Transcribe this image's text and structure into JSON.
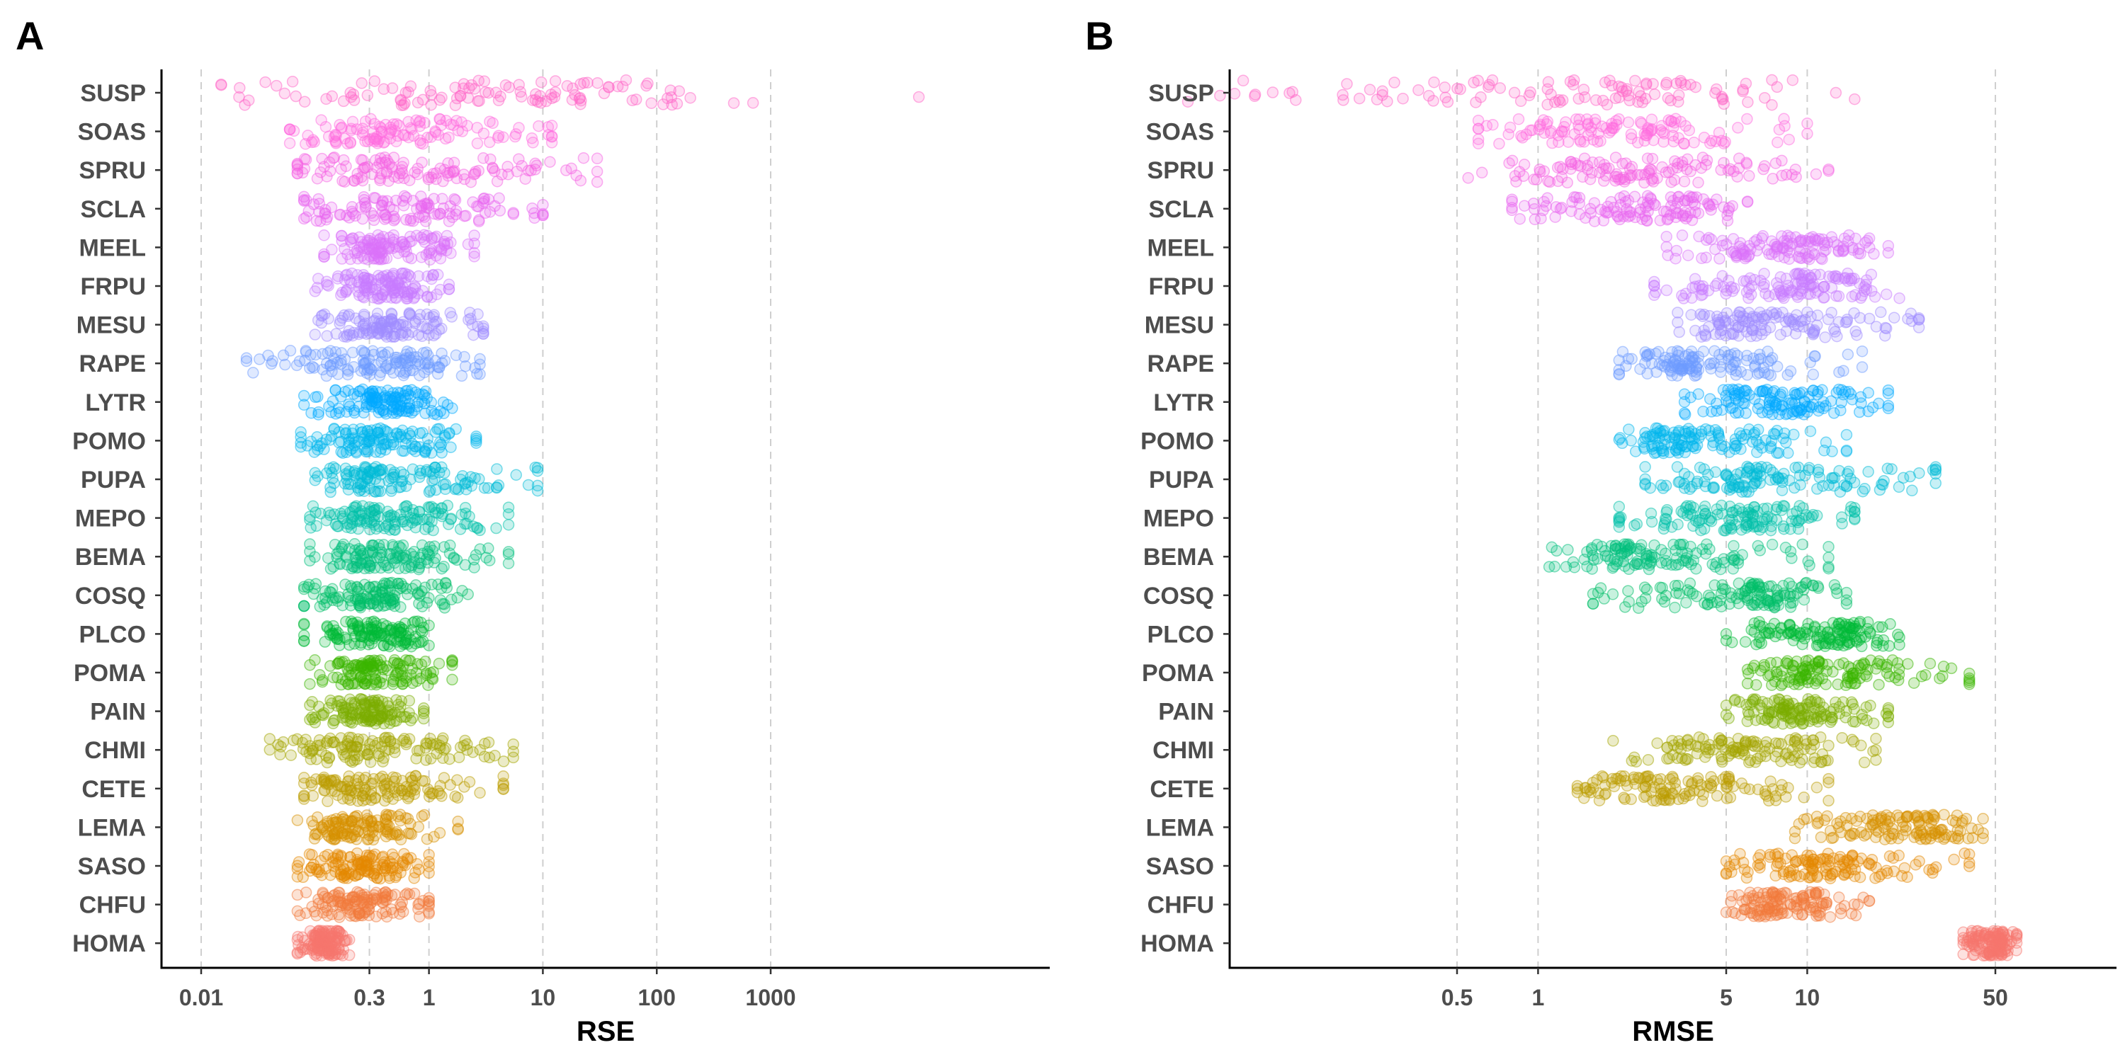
{
  "panels": {
    "A": {
      "label": "A"
    },
    "B": {
      "label": "B"
    }
  },
  "chart_data": [
    {
      "type": "scatter",
      "panel": "A",
      "xlabel": "RSE",
      "ylabel": "",
      "xscale": "log",
      "xlim": [
        0.005,
        300000
      ],
      "xticks": [
        0.01,
        0.3,
        1,
        10,
        100,
        1000
      ],
      "xtick_labels": [
        "0.01",
        "0.3",
        "1",
        "10",
        "100",
        "1000"
      ],
      "grid": "vertical dashed at ticks",
      "legend": "none",
      "categories": [
        "SUSP",
        "SOAS",
        "SPRU",
        "SCLA",
        "MEEL",
        "FRPU",
        "MESU",
        "RAPE",
        "LYTR",
        "POMO",
        "PUPA",
        "MEPO",
        "BEMA",
        "COSQ",
        "PLCO",
        "POMA",
        "PAIN",
        "CHMI",
        "CETE",
        "LEMA",
        "SASO",
        "CHFU",
        "HOMA"
      ],
      "series": [
        {
          "category": "SUSP",
          "color": "#FF66C8",
          "center": 5,
          "spread": [
            0.015,
            700
          ],
          "outliers": [
            20000
          ],
          "n": 110
        },
        {
          "category": "SOAS",
          "color": "#FF6CE0",
          "center": 0.5,
          "spread": [
            0.06,
            12
          ],
          "outliers": [],
          "n": 120
        },
        {
          "category": "SPRU",
          "color": "#F564E3",
          "center": 0.6,
          "spread": [
            0.07,
            30
          ],
          "outliers": [],
          "n": 120
        },
        {
          "category": "SCLA",
          "color": "#EA66F0",
          "center": 0.5,
          "spread": [
            0.08,
            10
          ],
          "outliers": [],
          "n": 120
        },
        {
          "category": "MEEL",
          "color": "#DC71FA",
          "center": 0.4,
          "spread": [
            0.12,
            2.5
          ],
          "outliers": [],
          "n": 130
        },
        {
          "category": "FRPU",
          "color": "#C77CFF",
          "center": 0.4,
          "spread": [
            0.1,
            1.5
          ],
          "outliers": [],
          "n": 130
        },
        {
          "category": "MESU",
          "color": "#9F8CFF",
          "center": 0.4,
          "spread": [
            0.1,
            3
          ],
          "outliers": [],
          "n": 130
        },
        {
          "category": "RAPE",
          "color": "#6E9CFF",
          "center": 0.4,
          "spread": [
            0.025,
            2.8
          ],
          "outliers": [],
          "n": 130
        },
        {
          "category": "LYTR",
          "color": "#00A9FF",
          "center": 0.4,
          "spread": [
            0.08,
            1.6
          ],
          "outliers": [],
          "n": 130
        },
        {
          "category": "POMO",
          "color": "#00B5EE",
          "center": 0.35,
          "spread": [
            0.075,
            2.6
          ],
          "outliers": [],
          "n": 130
        },
        {
          "category": "PUPA",
          "color": "#00BCD8",
          "center": 0.4,
          "spread": [
            0.1,
            9
          ],
          "outliers": [],
          "n": 130
        },
        {
          "category": "MEPO",
          "color": "#00C1AA",
          "center": 0.35,
          "spread": [
            0.09,
            5
          ],
          "outliers": [],
          "n": 130
        },
        {
          "category": "BEMA",
          "color": "#00BF7D",
          "center": 0.35,
          "spread": [
            0.09,
            5
          ],
          "outliers": [],
          "n": 130
        },
        {
          "category": "COSQ",
          "color": "#00BE67",
          "center": 0.35,
          "spread": [
            0.08,
            2.2
          ],
          "outliers": [],
          "n": 130
        },
        {
          "category": "PLCO",
          "color": "#00BA38",
          "center": 0.35,
          "spread": [
            0.08,
            1
          ],
          "outliers": [],
          "n": 130
        },
        {
          "category": "POMA",
          "color": "#39B600",
          "center": 0.3,
          "spread": [
            0.09,
            1.6
          ],
          "outliers": [],
          "n": 130
        },
        {
          "category": "PAIN",
          "color": "#7CAE00",
          "center": 0.3,
          "spread": [
            0.09,
            0.9
          ],
          "outliers": [],
          "n": 130
        },
        {
          "category": "CHMI",
          "color": "#A3A500",
          "center": 0.3,
          "spread": [
            0.04,
            5.5
          ],
          "outliers": [],
          "n": 130
        },
        {
          "category": "CETE",
          "color": "#BB9D00",
          "center": 0.3,
          "spread": [
            0.08,
            4.5
          ],
          "outliers": [],
          "n": 130
        },
        {
          "category": "LEMA",
          "color": "#D89000",
          "center": 0.25,
          "spread": [
            0.07,
            1.8
          ],
          "outliers": [],
          "n": 130
        },
        {
          "category": "SASO",
          "color": "#E58700",
          "center": 0.25,
          "spread": [
            0.07,
            1
          ],
          "outliers": [],
          "n": 130
        },
        {
          "category": "CHFU",
          "color": "#F17A3C",
          "center": 0.25,
          "spread": [
            0.07,
            1
          ],
          "outliers": [],
          "n": 130
        },
        {
          "category": "HOMA",
          "color": "#F8766D",
          "center": 0.12,
          "spread": [
            0.07,
            0.2
          ],
          "outliers": [],
          "n": 130
        }
      ]
    },
    {
      "type": "scatter",
      "panel": "B",
      "xlabel": "RMSE",
      "ylabel": "",
      "xscale": "log",
      "xlim": [
        0.05,
        120
      ],
      "xticks": [
        0.5,
        1,
        5,
        10,
        50
      ],
      "xtick_labels": [
        "0.5",
        "1",
        "5",
        "10",
        "50"
      ],
      "grid": "vertical dashed at ticks",
      "legend": "none",
      "categories": [
        "SUSP",
        "SOAS",
        "SPRU",
        "SCLA",
        "MEEL",
        "FRPU",
        "MESU",
        "RAPE",
        "LYTR",
        "POMO",
        "PUPA",
        "MEPO",
        "BEMA",
        "COSQ",
        "PLCO",
        "POMA",
        "PAIN",
        "CHMI",
        "CETE",
        "LEMA",
        "SASO",
        "CHFU",
        "HOMA"
      ],
      "series": [
        {
          "category": "SUSP",
          "color": "#FF66C8",
          "center": 1.5,
          "spread": [
            0.05,
            15
          ],
          "outliers": [],
          "n": 110
        },
        {
          "category": "SOAS",
          "color": "#FF6CE0",
          "center": 2,
          "spread": [
            0.6,
            10
          ],
          "outliers": [],
          "n": 120
        },
        {
          "category": "SPRU",
          "color": "#F564E3",
          "center": 2,
          "spread": [
            0.55,
            12
          ],
          "outliers": [],
          "n": 120
        },
        {
          "category": "SCLA",
          "color": "#EA66F0",
          "center": 2.5,
          "spread": [
            0.8,
            6
          ],
          "outliers": [],
          "n": 120
        },
        {
          "category": "MEEL",
          "color": "#DC71FA",
          "center": 9,
          "spread": [
            3,
            20
          ],
          "outliers": [],
          "n": 130
        },
        {
          "category": "FRPU",
          "color": "#C77CFF",
          "center": 9,
          "spread": [
            2.7,
            22
          ],
          "outliers": [],
          "n": 130
        },
        {
          "category": "MESU",
          "color": "#9F8CFF",
          "center": 7,
          "spread": [
            3.3,
            26
          ],
          "outliers": [],
          "n": 130
        },
        {
          "category": "RAPE",
          "color": "#6E9CFF",
          "center": 4,
          "spread": [
            2,
            16
          ],
          "outliers": [],
          "n": 130
        },
        {
          "category": "LYTR",
          "color": "#00A9FF",
          "center": 9,
          "spread": [
            3.5,
            20
          ],
          "outliers": [],
          "n": 130
        },
        {
          "category": "POMO",
          "color": "#00B5EE",
          "center": 3.5,
          "spread": [
            2,
            14
          ],
          "outliers": [],
          "n": 130
        },
        {
          "category": "PUPA",
          "color": "#00BCD8",
          "center": 7,
          "spread": [
            2.5,
            30
          ],
          "outliers": [],
          "n": 130
        },
        {
          "category": "MEPO",
          "color": "#00C1AA",
          "center": 5,
          "spread": [
            2,
            15
          ],
          "outliers": [],
          "n": 130
        },
        {
          "category": "BEMA",
          "color": "#00BF7D",
          "center": 2.5,
          "spread": [
            1.1,
            12
          ],
          "outliers": [],
          "n": 130
        },
        {
          "category": "COSQ",
          "color": "#00BE67",
          "center": 6,
          "spread": [
            1.6,
            14
          ],
          "outliers": [],
          "n": 130
        },
        {
          "category": "PLCO",
          "color": "#00BA38",
          "center": 12,
          "spread": [
            5,
            22
          ],
          "outliers": [],
          "n": 130
        },
        {
          "category": "POMA",
          "color": "#39B600",
          "center": 12,
          "spread": [
            6,
            40
          ],
          "outliers": [],
          "n": 130
        },
        {
          "category": "PAIN",
          "color": "#7CAE00",
          "center": 9,
          "spread": [
            5,
            20
          ],
          "outliers": [],
          "n": 130
        },
        {
          "category": "CHMI",
          "color": "#A3A500",
          "center": 6,
          "spread": [
            1.9,
            18
          ],
          "outliers": [],
          "n": 130
        },
        {
          "category": "CETE",
          "color": "#BB9D00",
          "center": 3,
          "spread": [
            1.4,
            12
          ],
          "outliers": [],
          "n": 130
        },
        {
          "category": "LEMA",
          "color": "#D89000",
          "center": 25,
          "spread": [
            9,
            45
          ],
          "outliers": [],
          "n": 130
        },
        {
          "category": "SASO",
          "color": "#E58700",
          "center": 11,
          "spread": [
            5,
            40
          ],
          "outliers": [],
          "n": 130
        },
        {
          "category": "CHFU",
          "color": "#F17A3C",
          "center": 8,
          "spread": [
            5,
            17
          ],
          "outliers": [],
          "n": 130
        },
        {
          "category": "HOMA",
          "color": "#F8766D",
          "center": 50,
          "spread": [
            38,
            60
          ],
          "outliers": [],
          "n": 130
        }
      ]
    }
  ]
}
